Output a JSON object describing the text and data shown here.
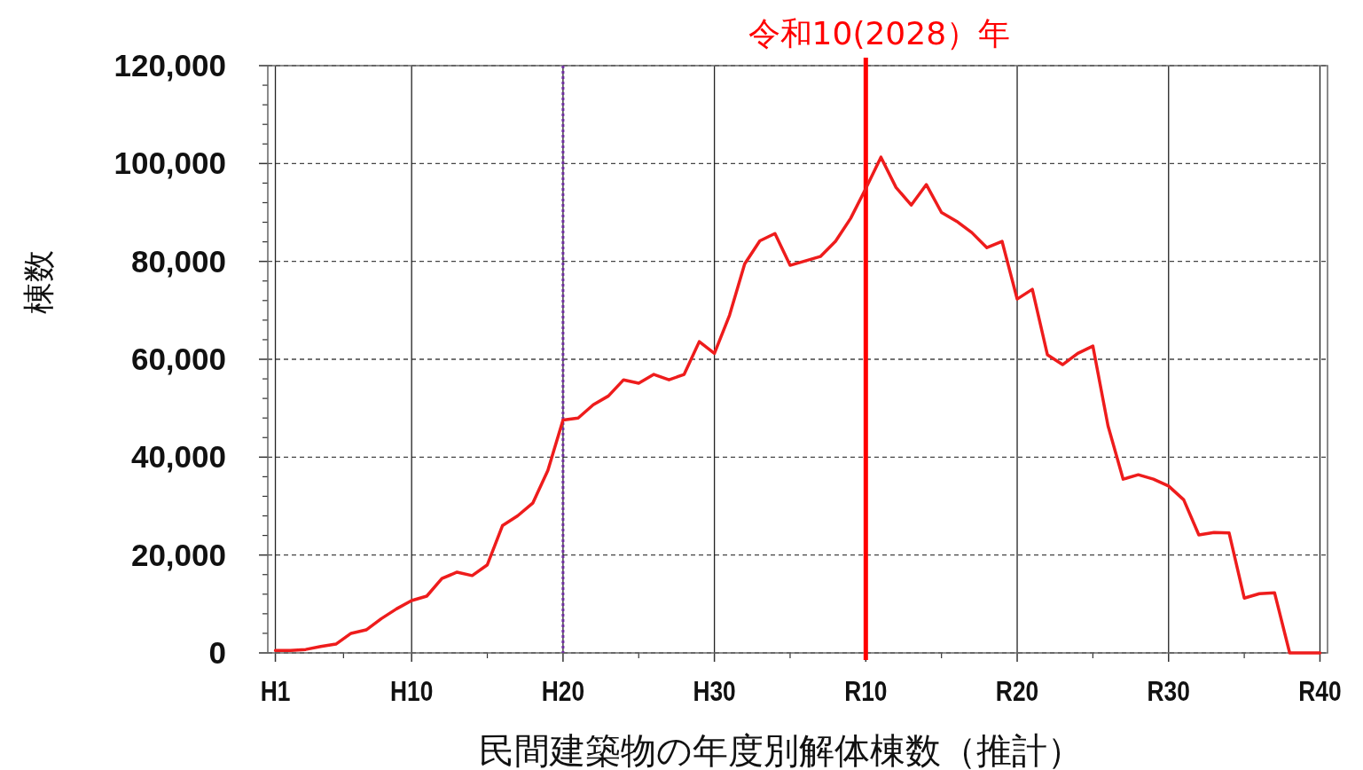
{
  "chart_data": {
    "type": "line",
    "categories": [
      "H1",
      null,
      null,
      null,
      null,
      null,
      null,
      null,
      null,
      "H10",
      null,
      null,
      null,
      null,
      null,
      null,
      null,
      null,
      null,
      "H20",
      null,
      null,
      null,
      null,
      null,
      null,
      null,
      null,
      null,
      "H30",
      null,
      null,
      null,
      null,
      null,
      null,
      null,
      null,
      null,
      "R10",
      null,
      null,
      null,
      null,
      null,
      null,
      null,
      null,
      null,
      "R20",
      null,
      null,
      null,
      null,
      null,
      null,
      null,
      null,
      null,
      "R30",
      null,
      null,
      null,
      null,
      null,
      null,
      null,
      null,
      null,
      "R40"
    ],
    "series": [
      {
        "color": "#ee1c1c",
        "values": [
          500,
          500,
          700,
          1300,
          1800,
          4000,
          4700,
          7000,
          9000,
          10700,
          11600,
          15200,
          16500,
          15800,
          18000,
          26000,
          28000,
          30600,
          37300,
          47600,
          48000,
          50700,
          52500,
          55800,
          55100,
          56900,
          55800,
          56900,
          63600,
          61200,
          69000,
          79500,
          84200,
          85700,
          79200,
          80100,
          81000,
          84100,
          88800,
          94900,
          101300,
          95100,
          91500,
          95700,
          90000,
          88200,
          85900,
          82800,
          84100,
          72300,
          74300,
          60900,
          58900,
          61200,
          62700,
          46400,
          35500,
          36400,
          35500,
          34100,
          31300,
          24100,
          24600,
          24500,
          11200,
          12100,
          12300,
          0,
          0,
          0
        ]
      }
    ],
    "ylim": [
      0,
      120000
    ],
    "yticks": [
      0,
      {
        "value": 20000,
        "label": "20,000"
      },
      {
        "value": 40000,
        "label": "40,000"
      },
      {
        "value": 60000,
        "label": "60,000"
      },
      {
        "value": 80000,
        "label": "80,000"
      },
      {
        "value": 100000,
        "label": "100,000"
      },
      {
        "value": 120000,
        "label": "120,000"
      }
    ],
    "grid": true,
    "xlabel": "民間建築物の年度別解体棟数（推計）",
    "ylabel": "棟数",
    "ref_lines": [
      {
        "axis": "x",
        "value": "R10",
        "label": "令和10(2028）年",
        "color": "#ff0000",
        "line_style": "solid"
      },
      {
        "axis": "x",
        "value": "H20",
        "label": null,
        "color": "#7030a0",
        "line_style": "dotted"
      }
    ]
  }
}
